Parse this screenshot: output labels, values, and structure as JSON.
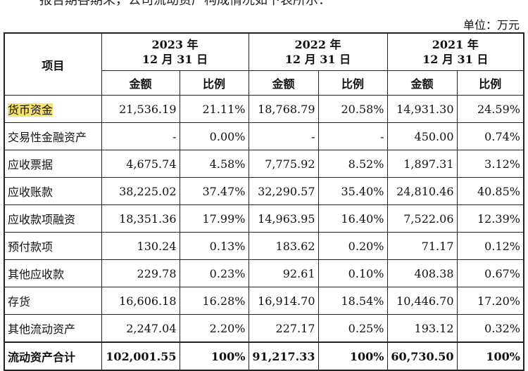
{
  "intro_text": "报告期各期末，公司流动资产构成情况如下表所示：",
  "unit_label": "单位：万元",
  "header": {
    "item_label": "项目",
    "years": [
      {
        "line1": "2023 年",
        "line2": "12 月 31 日"
      },
      {
        "line1": "2022 年",
        "line2": "12 月 31 日"
      },
      {
        "line1": "2021 年",
        "line2": "12 月 31 日"
      }
    ],
    "amount_label": "金额",
    "ratio_label": "比例"
  },
  "rows": [
    {
      "label": "货币资金",
      "highlight": true,
      "cells": [
        "21,536.19",
        "21.11%",
        "18,768.79",
        "20.58%",
        "14,931.30",
        "24.59%"
      ]
    },
    {
      "label": "交易性金融资产",
      "cells": [
        "-",
        "0.00%",
        "-",
        "-",
        "450.00",
        "0.74%"
      ]
    },
    {
      "label": "应收票据",
      "cells": [
        "4,675.74",
        "4.58%",
        "7,775.92",
        "8.52%",
        "1,897.31",
        "3.12%"
      ]
    },
    {
      "label": "应收账款",
      "cells": [
        "38,225.02",
        "37.47%",
        "32,290.57",
        "35.40%",
        "24,810.46",
        "40.85%"
      ]
    },
    {
      "label": "应收款项融资",
      "cells": [
        "18,351.36",
        "17.99%",
        "14,963.95",
        "16.40%",
        "7,522.06",
        "12.39%"
      ]
    },
    {
      "label": "预付款项",
      "cells": [
        "130.24",
        "0.13%",
        "183.62",
        "0.20%",
        "71.17",
        "0.12%"
      ]
    },
    {
      "label": "其他应收款",
      "cells": [
        "229.78",
        "0.23%",
        "92.61",
        "0.10%",
        "408.38",
        "0.67%"
      ]
    },
    {
      "label": "存货",
      "cells": [
        "16,606.18",
        "16.28%",
        "16,914.70",
        "18.54%",
        "10,446.70",
        "17.20%"
      ]
    },
    {
      "label": "其他流动资产",
      "cells": [
        "2,247.04",
        "2.20%",
        "227.17",
        "0.25%",
        "193.12",
        "0.32%"
      ]
    },
    {
      "label": "流动资产合计",
      "total": true,
      "cells": [
        "102,001.55",
        "100%",
        "91,217.33",
        "100%",
        "60,730.50",
        "100%"
      ]
    }
  ],
  "colors": {
    "highlight": "#f7e26b",
    "border": "#222222"
  }
}
